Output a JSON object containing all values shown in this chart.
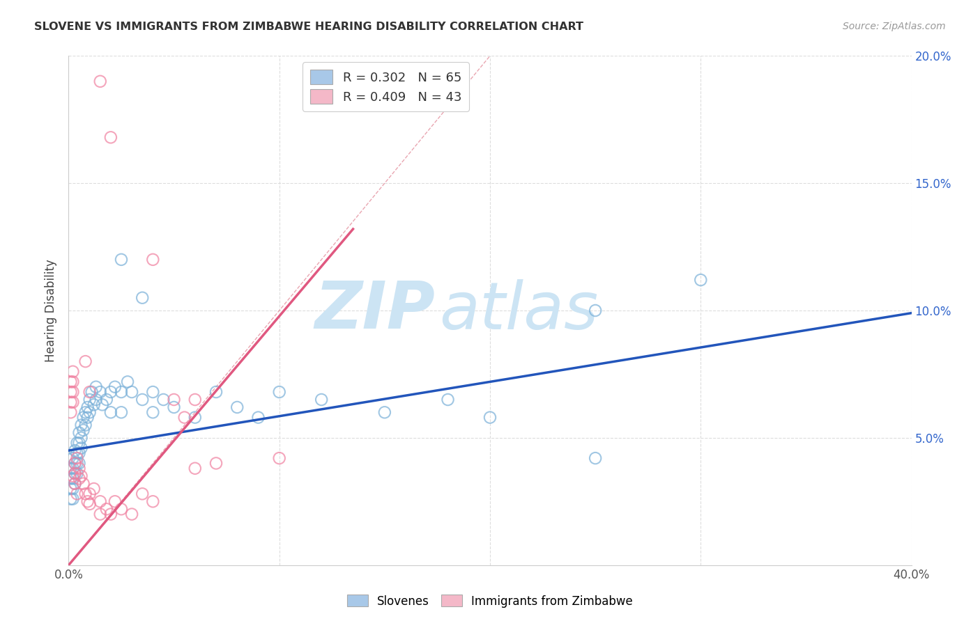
{
  "title": "SLOVENE VS IMMIGRANTS FROM ZIMBABWE HEARING DISABILITY CORRELATION CHART",
  "source": "Source: ZipAtlas.com",
  "ylabel": "Hearing Disability",
  "xlim": [
    0.0,
    0.4
  ],
  "ylim": [
    0.0,
    0.2
  ],
  "legend_entry1": "R = 0.302   N = 65",
  "legend_entry2": "R = 0.409   N = 43",
  "legend_color1": "#a8c8e8",
  "legend_color2": "#f4b8c8",
  "scatter_color1": "#7ab0d8",
  "scatter_color2": "#f080a0",
  "watermark": "ZIPatlas",
  "watermark_color": "#cce4f4",
  "blue_line_color": "#2255bb",
  "pink_line_color": "#e05880",
  "diag_line_color": "#e08090",
  "background_color": "#ffffff",
  "grid_color": "#dddddd",
  "blue_line": {
    "x0": 0.0,
    "y0": 0.045,
    "x1": 0.4,
    "y1": 0.099
  },
  "pink_line": {
    "x0": 0.0,
    "y0": 0.0,
    "x1": 0.135,
    "y1": 0.132
  },
  "diag_line": {
    "x0": 0.0,
    "y0": 0.0,
    "x1": 0.2,
    "y1": 0.2
  },
  "slovene_points": [
    [
      0.001,
      0.038
    ],
    [
      0.001,
      0.034
    ],
    [
      0.001,
      0.03
    ],
    [
      0.001,
      0.026
    ],
    [
      0.002,
      0.042
    ],
    [
      0.002,
      0.038
    ],
    [
      0.002,
      0.034
    ],
    [
      0.002,
      0.03
    ],
    [
      0.002,
      0.026
    ],
    [
      0.003,
      0.045
    ],
    [
      0.003,
      0.04
    ],
    [
      0.003,
      0.036
    ],
    [
      0.003,
      0.032
    ],
    [
      0.004,
      0.048
    ],
    [
      0.004,
      0.044
    ],
    [
      0.004,
      0.04
    ],
    [
      0.004,
      0.036
    ],
    [
      0.005,
      0.052
    ],
    [
      0.005,
      0.048
    ],
    [
      0.005,
      0.044
    ],
    [
      0.005,
      0.04
    ],
    [
      0.006,
      0.055
    ],
    [
      0.006,
      0.05
    ],
    [
      0.006,
      0.046
    ],
    [
      0.007,
      0.058
    ],
    [
      0.007,
      0.053
    ],
    [
      0.008,
      0.06
    ],
    [
      0.008,
      0.055
    ],
    [
      0.009,
      0.062
    ],
    [
      0.009,
      0.058
    ],
    [
      0.01,
      0.065
    ],
    [
      0.01,
      0.06
    ],
    [
      0.011,
      0.068
    ],
    [
      0.012,
      0.063
    ],
    [
      0.013,
      0.07
    ],
    [
      0.013,
      0.065
    ],
    [
      0.015,
      0.068
    ],
    [
      0.016,
      0.063
    ],
    [
      0.018,
      0.065
    ],
    [
      0.02,
      0.068
    ],
    [
      0.02,
      0.06
    ],
    [
      0.022,
      0.07
    ],
    [
      0.025,
      0.068
    ],
    [
      0.025,
      0.06
    ],
    [
      0.028,
      0.072
    ],
    [
      0.03,
      0.068
    ],
    [
      0.035,
      0.065
    ],
    [
      0.04,
      0.068
    ],
    [
      0.04,
      0.06
    ],
    [
      0.045,
      0.065
    ],
    [
      0.05,
      0.062
    ],
    [
      0.06,
      0.058
    ],
    [
      0.07,
      0.068
    ],
    [
      0.08,
      0.062
    ],
    [
      0.09,
      0.058
    ],
    [
      0.1,
      0.068
    ],
    [
      0.12,
      0.065
    ],
    [
      0.15,
      0.06
    ],
    [
      0.18,
      0.065
    ],
    [
      0.2,
      0.058
    ],
    [
      0.25,
      0.1
    ],
    [
      0.3,
      0.112
    ],
    [
      0.025,
      0.12
    ],
    [
      0.035,
      0.105
    ],
    [
      0.25,
      0.042
    ]
  ],
  "zimb_points": [
    [
      0.001,
      0.072
    ],
    [
      0.001,
      0.068
    ],
    [
      0.001,
      0.064
    ],
    [
      0.001,
      0.06
    ],
    [
      0.002,
      0.076
    ],
    [
      0.002,
      0.072
    ],
    [
      0.002,
      0.068
    ],
    [
      0.002,
      0.064
    ],
    [
      0.002,
      0.035
    ],
    [
      0.003,
      0.04
    ],
    [
      0.003,
      0.036
    ],
    [
      0.003,
      0.032
    ],
    [
      0.004,
      0.042
    ],
    [
      0.004,
      0.028
    ],
    [
      0.005,
      0.038
    ],
    [
      0.005,
      0.034
    ],
    [
      0.006,
      0.035
    ],
    [
      0.007,
      0.032
    ],
    [
      0.008,
      0.028
    ],
    [
      0.009,
      0.025
    ],
    [
      0.01,
      0.028
    ],
    [
      0.01,
      0.024
    ],
    [
      0.012,
      0.03
    ],
    [
      0.015,
      0.025
    ],
    [
      0.015,
      0.02
    ],
    [
      0.018,
      0.022
    ],
    [
      0.02,
      0.02
    ],
    [
      0.022,
      0.025
    ],
    [
      0.025,
      0.022
    ],
    [
      0.03,
      0.02
    ],
    [
      0.035,
      0.028
    ],
    [
      0.04,
      0.025
    ],
    [
      0.05,
      0.065
    ],
    [
      0.055,
      0.058
    ],
    [
      0.06,
      0.038
    ],
    [
      0.07,
      0.04
    ],
    [
      0.1,
      0.042
    ],
    [
      0.015,
      0.19
    ],
    [
      0.02,
      0.168
    ],
    [
      0.04,
      0.12
    ],
    [
      0.06,
      0.065
    ],
    [
      0.008,
      0.08
    ],
    [
      0.01,
      0.068
    ]
  ]
}
